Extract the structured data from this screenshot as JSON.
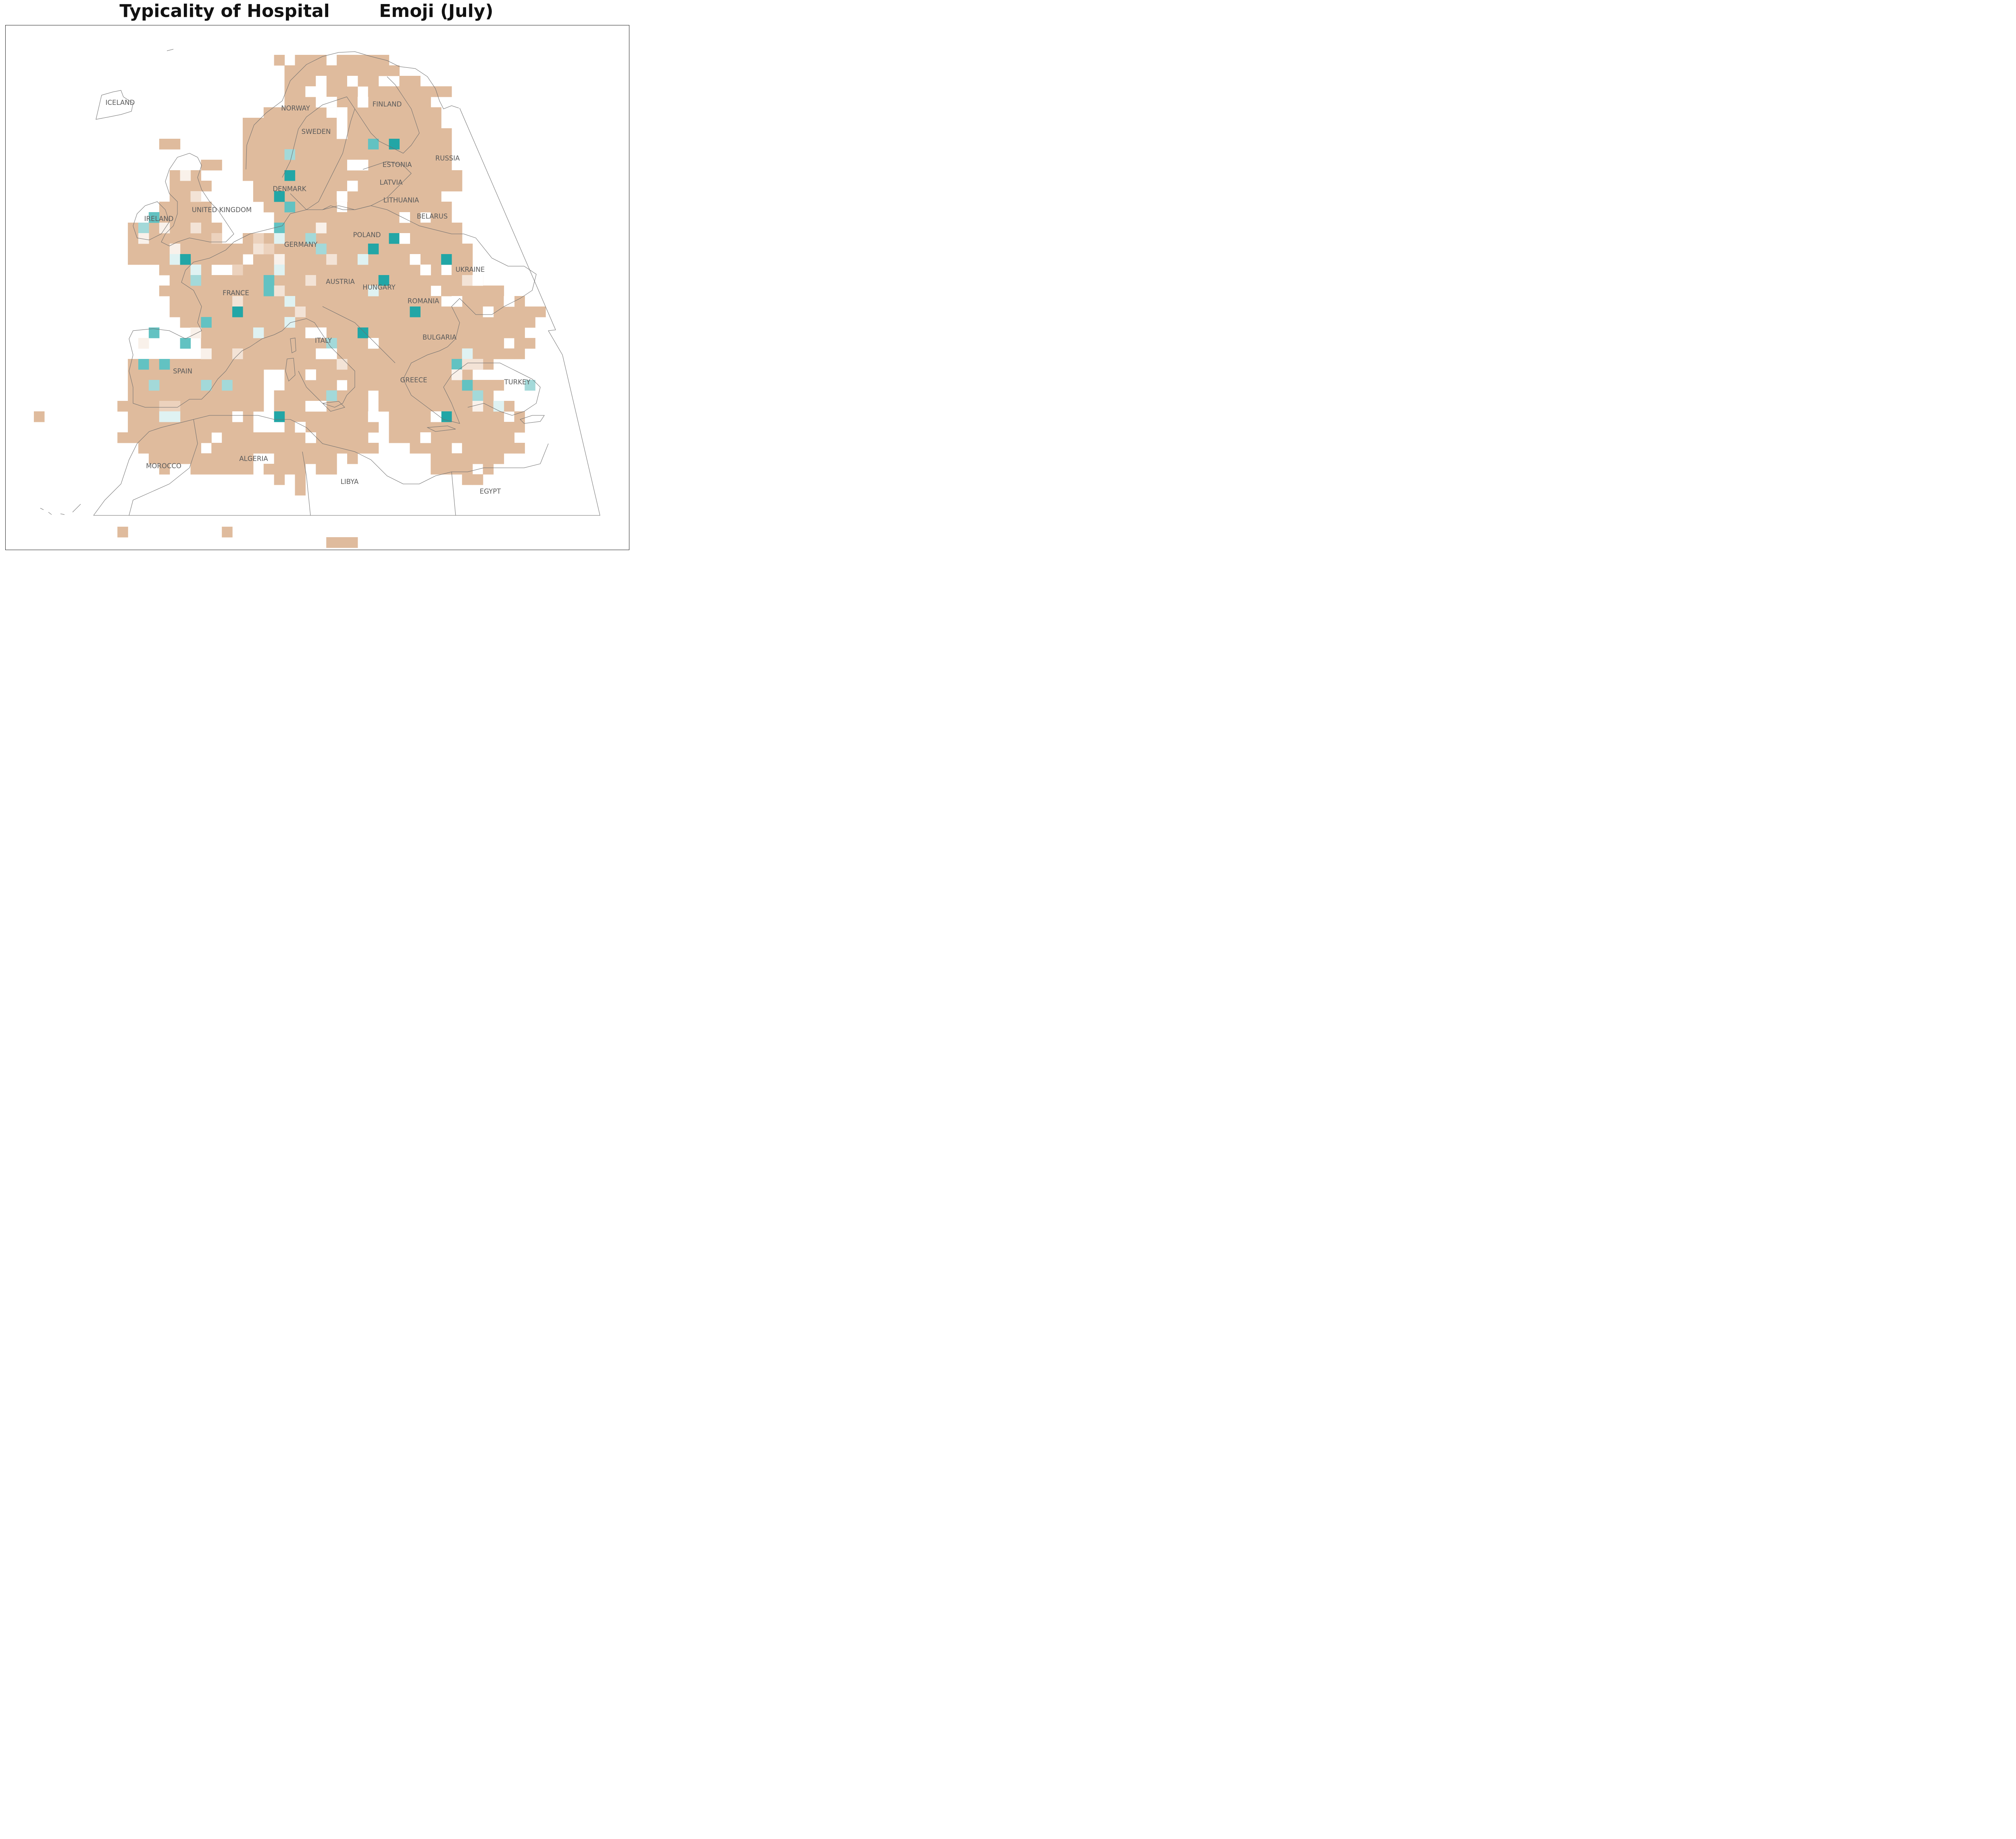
{
  "title": "Typicality of Hospital        Emoji (July)",
  "colors": {
    "base": "#dfbb9d",
    "base_light": "#ecd2bd",
    "base_pale": "#f3e3d6",
    "base_faint": "#f9f1ea",
    "teal_dark": "#22a6a6",
    "teal_mid": "#62c2c2",
    "teal_light": "#a3d9d9",
    "teal_faint": "#dff2f2"
  },
  "labels": [
    {
      "name": "ICELAND"
    },
    {
      "name": "NORWAY"
    },
    {
      "name": "FINLAND"
    },
    {
      "name": "SWEDEN"
    },
    {
      "name": "RUSSIA"
    },
    {
      "name": "ESTONIA"
    },
    {
      "name": "LATVIA"
    },
    {
      "name": "DENMARK"
    },
    {
      "name": "LITHUANIA"
    },
    {
      "name": "UNITED KINGDOM"
    },
    {
      "name": "BELARUS"
    },
    {
      "name": "IRELAND"
    },
    {
      "name": "POLAND"
    },
    {
      "name": "GERMANY"
    },
    {
      "name": "UKRAINE"
    },
    {
      "name": "AUSTRIA"
    },
    {
      "name": "HUNGARY"
    },
    {
      "name": "FRANCE"
    },
    {
      "name": "ROMANIA"
    },
    {
      "name": "ITALY"
    },
    {
      "name": "BULGARIA"
    },
    {
      "name": "SPAIN"
    },
    {
      "name": "GREECE"
    },
    {
      "name": "TURKEY"
    },
    {
      "name": "MOROCCO"
    },
    {
      "name": "ALGERIA"
    },
    {
      "name": "LIBYA"
    },
    {
      "name": "EGYPT"
    }
  ]
}
